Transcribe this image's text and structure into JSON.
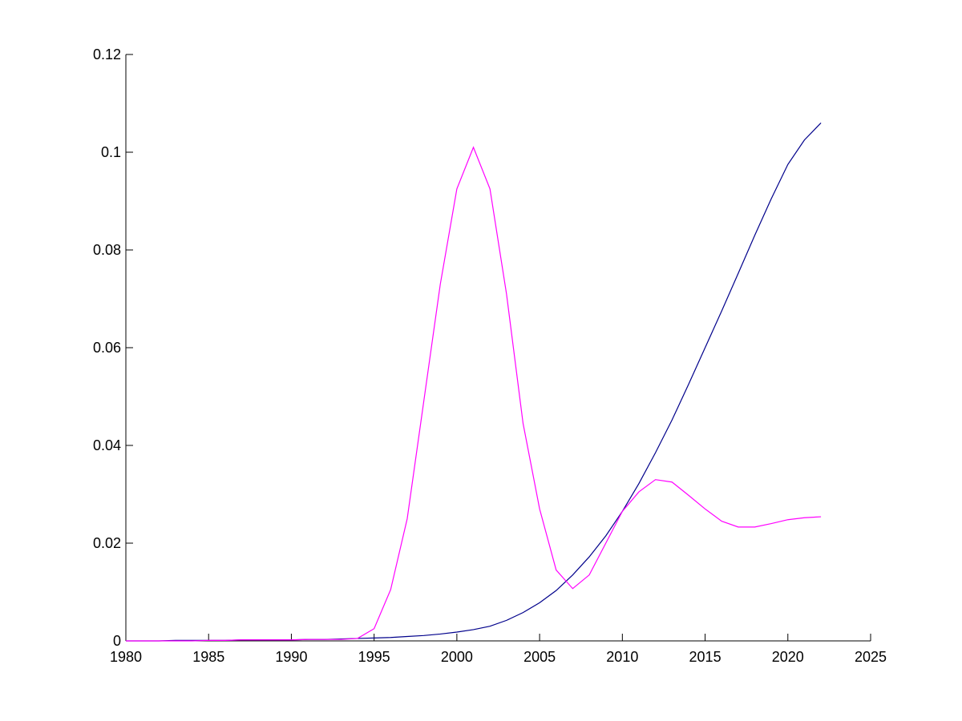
{
  "chart_data": {
    "type": "line",
    "x": [
      1980,
      1981,
      1982,
      1983,
      1984,
      1985,
      1986,
      1987,
      1988,
      1989,
      1990,
      1991,
      1992,
      1993,
      1994,
      1995,
      1996,
      1997,
      1998,
      1999,
      2000,
      2001,
      2002,
      2003,
      2004,
      2005,
      2006,
      2007,
      2008,
      2009,
      2010,
      2011,
      2012,
      2013,
      2014,
      2015,
      2016,
      2017,
      2018,
      2019,
      2020,
      2021,
      2022
    ],
    "series": [
      {
        "color": "#00008b",
        "values": [
          0,
          0,
          0,
          0.0001,
          0.0001,
          0.0001,
          0.0001,
          0.0002,
          0.0002,
          0.0002,
          0.0002,
          0.0003,
          0.0003,
          0.0004,
          0.0005,
          0.0006,
          0.0007,
          0.0009,
          0.0011,
          0.0014,
          0.0018,
          0.0023,
          0.003,
          0.0042,
          0.0058,
          0.0078,
          0.0103,
          0.0135,
          0.0172,
          0.0215,
          0.0265,
          0.0322,
          0.0385,
          0.0452,
          0.0525,
          0.06,
          0.0675,
          0.0752,
          0.083,
          0.0905,
          0.0975,
          0.1025,
          0.106
        ]
      },
      {
        "color": "#ff00ff",
        "values": [
          0,
          0,
          0,
          0,
          0,
          0.0001,
          0.0001,
          0.0002,
          0.0002,
          0.0002,
          0.0002,
          0.0003,
          0.0003,
          0.0003,
          0.0005,
          0.0025,
          0.0105,
          0.025,
          0.049,
          0.073,
          0.0925,
          0.101,
          0.0925,
          0.071,
          0.0445,
          0.027,
          0.0145,
          0.0107,
          0.0135,
          0.02,
          0.0265,
          0.0305,
          0.033,
          0.0325,
          0.0298,
          0.027,
          0.0245,
          0.0233,
          0.0233,
          0.024,
          0.0248,
          0.0252,
          0.0254
        ]
      }
    ],
    "xlim": [
      1980,
      2025
    ],
    "xticks": [
      1980,
      1985,
      1990,
      1995,
      2000,
      2005,
      2010,
      2015,
      2020,
      2025
    ],
    "ylim": [
      0,
      0.12
    ],
    "yticks": [
      0,
      0.02,
      0.04,
      0.06,
      0.08,
      0.1,
      0.12
    ]
  }
}
